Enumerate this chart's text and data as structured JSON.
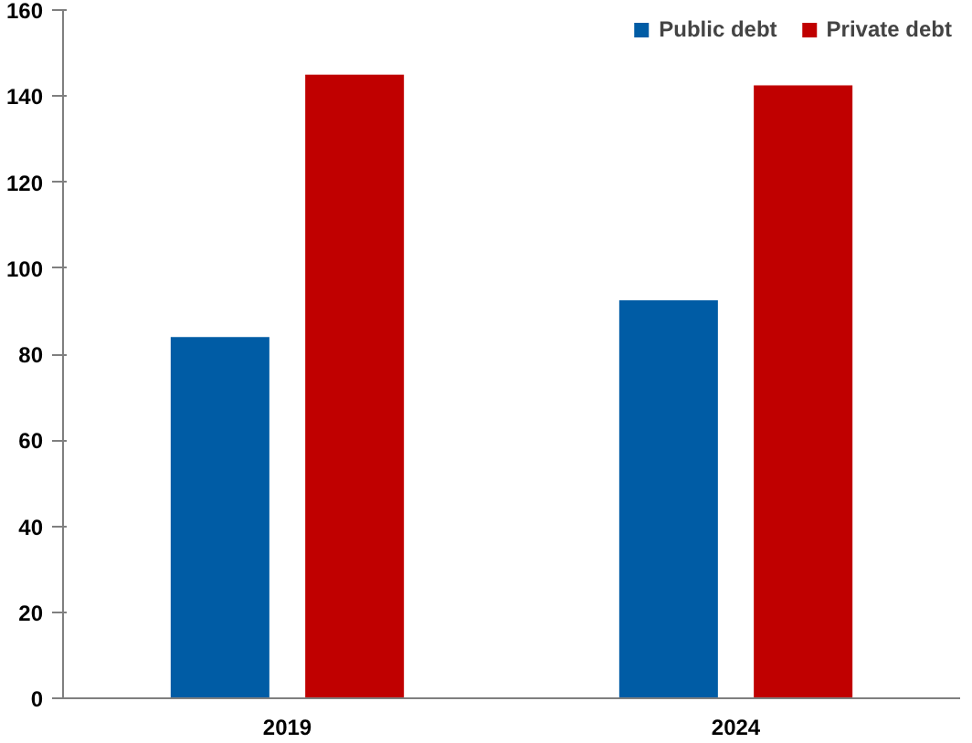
{
  "chart_data": {
    "type": "bar",
    "categories": [
      "2019",
      "2024"
    ],
    "series": [
      {
        "name": "Public debt",
        "color": "#005ca5",
        "values": [
          84,
          92.5
        ]
      },
      {
        "name": "Private debt",
        "color": "#c00000",
        "values": [
          145,
          142.5
        ]
      }
    ],
    "ylim": [
      0,
      160
    ],
    "yticks": [
      0,
      20,
      40,
      60,
      80,
      100,
      120,
      140,
      160
    ],
    "grid": false,
    "legend": "top right"
  }
}
